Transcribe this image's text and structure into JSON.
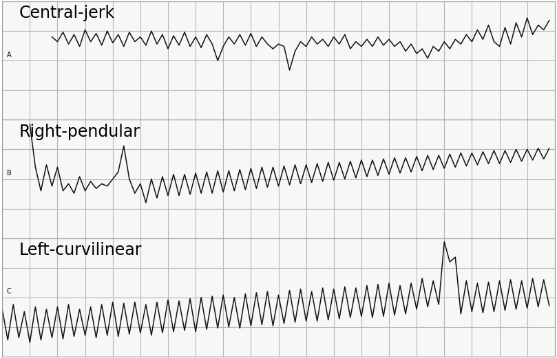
{
  "chart_data": [
    {
      "type": "line",
      "panel": "A",
      "title": "Central-jerk",
      "color": "#111111",
      "grid": true,
      "tick_labels": false,
      "xlim": [
        0,
        100
      ],
      "ylim": [
        0,
        100
      ],
      "xticks": [
        0,
        5,
        10,
        15,
        20,
        25,
        30,
        35,
        40,
        45,
        50,
        55,
        60,
        65,
        70,
        75,
        80,
        85,
        90,
        95,
        100
      ],
      "yticks": [
        0,
        25,
        50,
        75,
        100
      ],
      "x": [
        9,
        10,
        11,
        12,
        13,
        14,
        15,
        16,
        17,
        18,
        19,
        20,
        21,
        22,
        23,
        24,
        25,
        26,
        27,
        28,
        29,
        30,
        31,
        32,
        33,
        34,
        35,
        36,
        37,
        38,
        39,
        40,
        41,
        42,
        43,
        44,
        45,
        46,
        47,
        48,
        49,
        50,
        51,
        52,
        53,
        54,
        55,
        56,
        57,
        58,
        59,
        60,
        61,
        62,
        63,
        64,
        65,
        66,
        67,
        68,
        69,
        70,
        71,
        72,
        73,
        74,
        75,
        76,
        77,
        78,
        79,
        80,
        81,
        82,
        83,
        84,
        85,
        86,
        87,
        88,
        89,
        90,
        91,
        92,
        93,
        94,
        95,
        96,
        97,
        98,
        99
      ],
      "values": [
        70,
        66,
        74,
        64,
        72,
        62,
        76,
        66,
        73,
        63,
        75,
        65,
        72,
        62,
        74,
        66,
        70,
        63,
        75,
        64,
        72,
        60,
        71,
        63,
        74,
        62,
        70,
        61,
        72,
        64,
        50,
        62,
        70,
        64,
        72,
        63,
        73,
        62,
        70,
        64,
        60,
        64,
        62,
        42,
        58,
        66,
        62,
        70,
        64,
        68,
        62,
        70,
        64,
        72,
        60,
        66,
        62,
        68,
        62,
        70,
        63,
        68,
        62,
        66,
        58,
        64,
        56,
        60,
        52,
        62,
        58,
        66,
        60,
        68,
        64,
        72,
        66,
        76,
        68,
        80,
        66,
        62,
        78,
        64,
        82,
        70,
        86,
        72,
        80,
        76,
        84
      ]
    },
    {
      "type": "line",
      "panel": "B",
      "title": "Right-pendular",
      "color": "#111111",
      "grid": true,
      "tick_labels": false,
      "xlim": [
        0,
        100
      ],
      "ylim": [
        0,
        100
      ],
      "xticks": [
        0,
        5,
        10,
        15,
        20,
        25,
        30,
        35,
        40,
        45,
        50,
        55,
        60,
        65,
        70,
        75,
        80,
        85,
        90,
        95,
        100
      ],
      "yticks": [
        0,
        25,
        50,
        75,
        100
      ],
      "x": [
        5,
        6,
        7,
        8,
        9,
        10,
        11,
        12,
        13,
        14,
        15,
        16,
        17,
        18,
        19,
        20,
        21,
        22,
        23,
        24,
        25,
        26,
        27,
        28,
        29,
        30,
        31,
        32,
        33,
        34,
        35,
        36,
        37,
        38,
        39,
        40,
        41,
        42,
        43,
        44,
        45,
        46,
        47,
        48,
        49,
        50,
        51,
        52,
        53,
        54,
        55,
        56,
        57,
        58,
        59,
        60,
        61,
        62,
        63,
        64,
        65,
        66,
        67,
        68,
        69,
        70,
        71,
        72,
        73,
        74,
        75,
        76,
        77,
        78,
        79,
        80,
        81,
        82,
        83,
        84,
        85,
        86,
        87,
        88,
        89,
        90,
        91,
        92,
        93,
        94,
        95,
        96,
        97,
        98,
        99
      ],
      "values": [
        96,
        60,
        40,
        62,
        44,
        60,
        40,
        46,
        38,
        52,
        40,
        48,
        42,
        46,
        44,
        50,
        56,
        78,
        50,
        38,
        46,
        30,
        50,
        34,
        52,
        36,
        54,
        36,
        54,
        37,
        55,
        38,
        56,
        38,
        57,
        39,
        57,
        40,
        58,
        41,
        59,
        42,
        60,
        43,
        60,
        44,
        61,
        45,
        62,
        46,
        62,
        47,
        63,
        48,
        64,
        49,
        64,
        50,
        65,
        51,
        66,
        52,
        66,
        53,
        67,
        54,
        68,
        55,
        68,
        56,
        69,
        57,
        70,
        58,
        70,
        59,
        71,
        60,
        72,
        61,
        72,
        62,
        73,
        63,
        74,
        63,
        74,
        64,
        75,
        65,
        75,
        66,
        76,
        67,
        76
      ]
    },
    {
      "type": "line",
      "panel": "C",
      "title": "Left-curvilinear",
      "color": "#111111",
      "grid": true,
      "tick_labels": false,
      "xlim": [
        0,
        100
      ],
      "ylim": [
        0,
        100
      ],
      "xticks": [
        0,
        5,
        10,
        15,
        20,
        25,
        30,
        35,
        40,
        45,
        50,
        55,
        60,
        65,
        70,
        75,
        80,
        85,
        90,
        95,
        100
      ],
      "yticks": [
        0,
        25,
        50,
        75,
        100
      ],
      "x": [
        0,
        1,
        2,
        3,
        4,
        5,
        6,
        7,
        8,
        9,
        10,
        11,
        12,
        13,
        14,
        15,
        16,
        17,
        18,
        19,
        20,
        21,
        22,
        23,
        24,
        25,
        26,
        27,
        28,
        29,
        30,
        31,
        32,
        33,
        34,
        35,
        36,
        37,
        38,
        39,
        40,
        41,
        42,
        43,
        44,
        45,
        46,
        47,
        48,
        49,
        50,
        51,
        52,
        53,
        54,
        55,
        56,
        57,
        58,
        59,
        60,
        61,
        62,
        63,
        64,
        65,
        66,
        67,
        68,
        69,
        70,
        71,
        72,
        73,
        74,
        75,
        76,
        77,
        78,
        79,
        80,
        81,
        82,
        83,
        84,
        85,
        86,
        87,
        88,
        89,
        90,
        91,
        92,
        93,
        94,
        95,
        96,
        97,
        98,
        99
      ],
      "values": [
        40,
        14,
        44,
        16,
        38,
        12,
        42,
        14,
        40,
        16,
        42,
        15,
        44,
        17,
        40,
        18,
        42,
        16,
        44,
        18,
        46,
        17,
        45,
        19,
        46,
        20,
        44,
        18,
        46,
        20,
        48,
        21,
        47,
        22,
        49,
        21,
        50,
        23,
        51,
        24,
        52,
        25,
        50,
        24,
        53,
        26,
        54,
        27,
        55,
        26,
        52,
        28,
        56,
        29,
        57,
        30,
        55,
        30,
        58,
        31,
        57,
        32,
        59,
        33,
        58,
        34,
        60,
        33,
        61,
        34,
        62,
        35,
        60,
        36,
        62,
        40,
        66,
        42,
        64,
        44,
        97,
        80,
        84,
        36,
        64,
        38,
        62,
        37,
        63,
        38,
        64,
        39,
        65,
        40,
        64,
        41,
        66,
        42,
        65,
        43
      ]
    }
  ]
}
